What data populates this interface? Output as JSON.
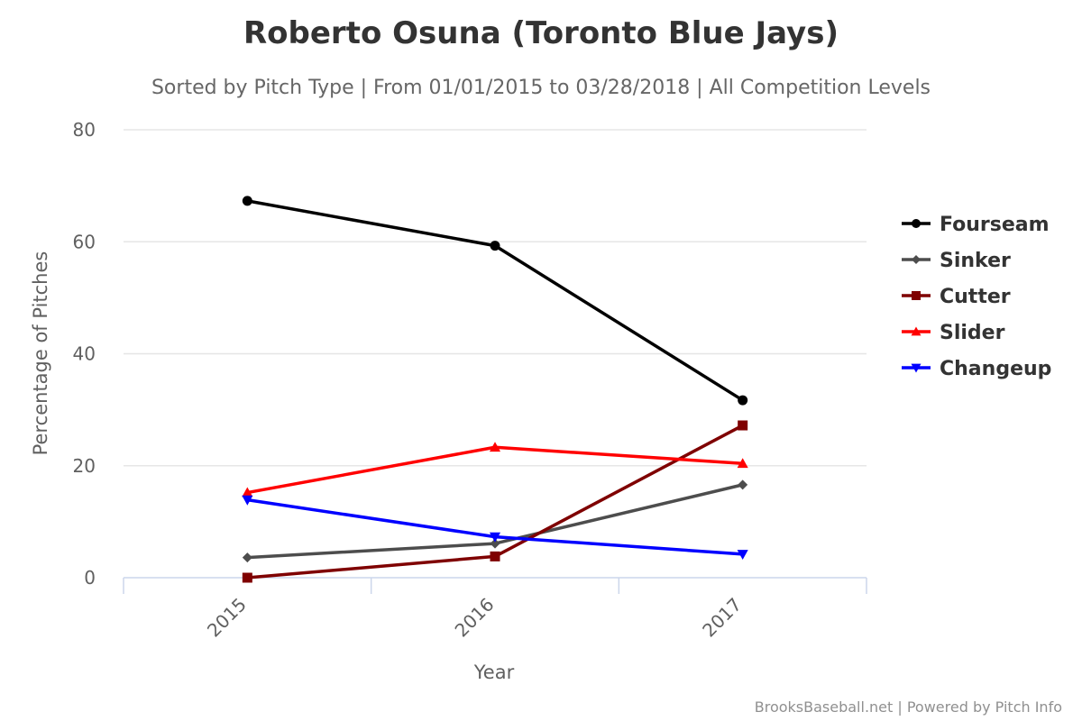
{
  "chart_data": {
    "type": "line",
    "title": "Roberto Osuna (Toronto Blue Jays)",
    "subtitle": "Sorted by Pitch Type | From 01/01/2015 to 03/28/2018 | All Competition Levels",
    "xlabel": "Year",
    "ylabel": "Percentage of Pitches",
    "categories": [
      "2015",
      "2016",
      "2017"
    ],
    "ylim": [
      0,
      80
    ],
    "yticks": [
      0,
      20,
      40,
      60,
      80
    ],
    "grid": true,
    "legend_position": "right",
    "series": [
      {
        "name": "Fourseam",
        "color": "#000000",
        "marker": "circle",
        "values": [
          67.3,
          59.3,
          31.7
        ]
      },
      {
        "name": "Sinker",
        "color": "#4d4d4d",
        "marker": "diamond",
        "values": [
          3.6,
          6.1,
          16.6
        ]
      },
      {
        "name": "Cutter",
        "color": "#7f0000",
        "marker": "square",
        "values": [
          0.0,
          3.8,
          27.2
        ]
      },
      {
        "name": "Slider",
        "color": "#ff0000",
        "marker": "triangle-up",
        "values": [
          15.2,
          23.3,
          20.4
        ]
      },
      {
        "name": "Changeup",
        "color": "#0000ff",
        "marker": "triangle-down",
        "values": [
          13.9,
          7.3,
          4.2
        ]
      }
    ]
  },
  "credit": "BrooksBaseball.net | Powered by Pitch Info"
}
